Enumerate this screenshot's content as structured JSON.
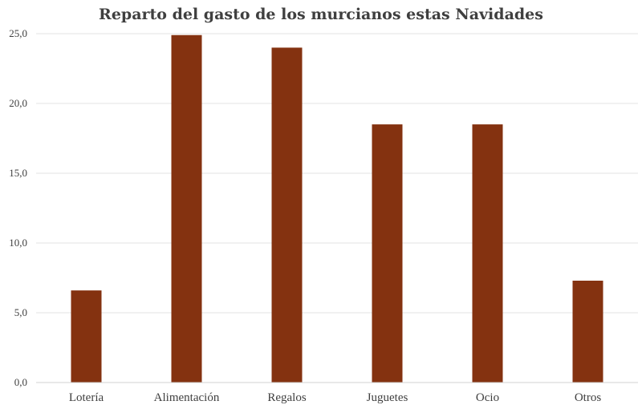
{
  "chart_data": {
    "type": "bar",
    "title": "Reparto del gasto de los murcianos estas Navidades",
    "xlabel": "",
    "ylabel": "",
    "categories": [
      "Lotería",
      "Alimentación",
      "Regalos",
      "Juguetes",
      "Ocio",
      "Otros"
    ],
    "values": [
      6.6,
      24.9,
      24.0,
      18.5,
      18.5,
      7.3
    ],
    "ylim": [
      0,
      25
    ],
    "yticks": [
      "0,0",
      "5,0",
      "10,0",
      "15,0",
      "20,0",
      "25,0"
    ],
    "ytick_values": [
      0,
      5,
      10,
      15,
      20,
      25
    ],
    "grid": true,
    "legend": "none",
    "bar_color": "#843210"
  }
}
